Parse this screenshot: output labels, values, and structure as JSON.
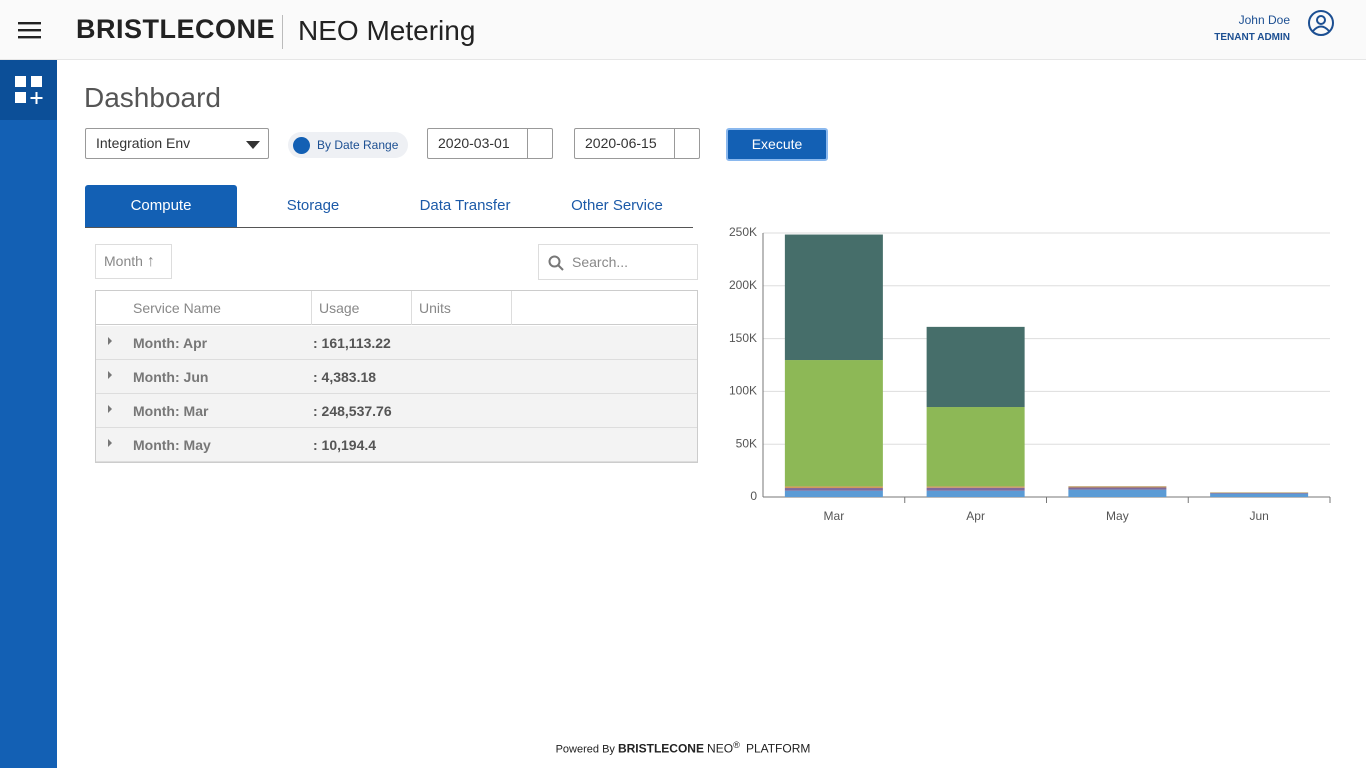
{
  "header": {
    "brand": "BRISTLECONE",
    "app": "NEO Metering",
    "user_name": "John Doe",
    "user_role": "TENANT ADMIN"
  },
  "page_title": "Dashboard",
  "filters": {
    "environment": "Integration Env",
    "mode": "By Date Range",
    "start_date": "2020-03-01",
    "end_date": "2020-06-15",
    "execute": "Execute"
  },
  "tabs": [
    "Compute",
    "Storage",
    "Data Transfer",
    "Other Service"
  ],
  "grid": {
    "group_by": "Month",
    "search_placeholder": "Search...",
    "columns": [
      "Service Name",
      "Usage",
      "Units"
    ],
    "rows": [
      [
        "Month: Apr",
        ": 161,113.22"
      ],
      [
        "Month: Jun",
        ": 4,383.18"
      ],
      [
        "Month: Mar",
        ": 248,537.76"
      ],
      [
        "Month: May",
        ": 10,194.4"
      ]
    ]
  },
  "chart_data": {
    "type": "stacked_bar",
    "categories": [
      "Mar",
      "Apr",
      "May",
      "Jun"
    ],
    "series": [
      {
        "color": "#5b9bd5",
        "values": [
          6000,
          6000,
          7000,
          3200
        ]
      },
      {
        "color": "#7e6a9a",
        "values": [
          2500,
          2800,
          2000,
          600
        ]
      },
      {
        "color": "#d49a5c",
        "values": [
          1500,
          1200,
          1000,
          400
        ]
      },
      {
        "color": "#8db856",
        "values": [
          119700,
          75200,
          100,
          100
        ]
      },
      {
        "color": "#466e6a",
        "values": [
          118837.76,
          75913.22,
          94.4,
          83.18
        ]
      }
    ],
    "ylim": [
      0,
      250000
    ],
    "yticks": [
      0,
      {
        "value": 50000,
        "label": "50K"
      },
      {
        "value": 100000,
        "label": "100K"
      },
      {
        "value": 150000,
        "label": "150K"
      },
      {
        "value": 200000,
        "label": "200K"
      },
      {
        "value": 250000,
        "label": "250K"
      }
    ],
    "grid": true
  },
  "footer": {
    "powered": "Powered By",
    "brand": "BRISTLECONE",
    "neo": "NEO",
    "reg": "®",
    "platform": "PLATFORM"
  }
}
